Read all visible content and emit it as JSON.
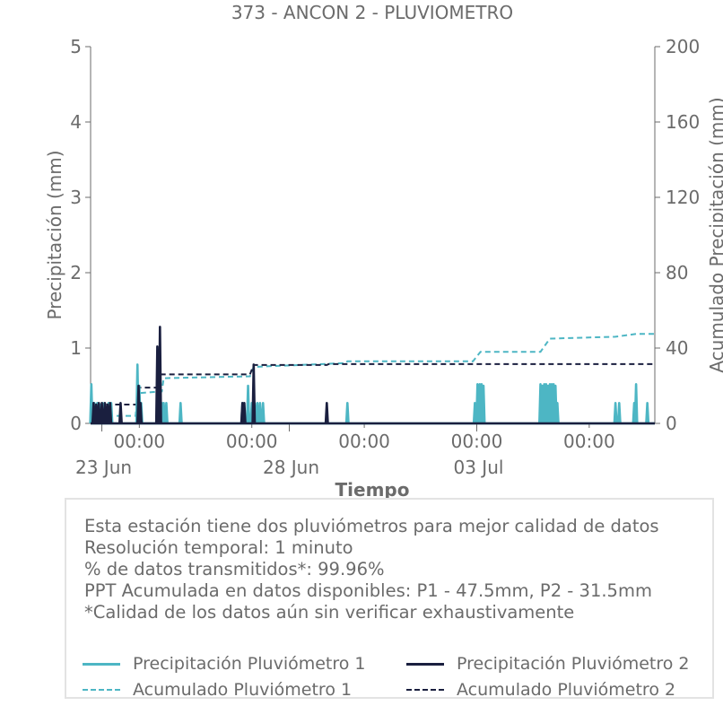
{
  "chart_data": {
    "type": "line",
    "title": "373 - ANCON 2 - PLUVIOMETRO",
    "xlabel": "Tiempo",
    "ylabel": "Precipitación (mm)",
    "y2label": "Acumulado Precipitación (mm)",
    "ylim": [
      0,
      5
    ],
    "y2lim": [
      0,
      200
    ],
    "yticks": [
      0,
      1,
      2,
      3,
      4,
      5
    ],
    "y2ticks": [
      0,
      40,
      80,
      120,
      160,
      200
    ],
    "xlim": [
      -0.3,
      14.75
    ],
    "xticks": [
      {
        "pos": 1,
        "label": "00:00"
      },
      {
        "pos": 4,
        "label": "00:00"
      },
      {
        "pos": 7,
        "label": "00:00"
      },
      {
        "pos": 10,
        "label": "00:00"
      },
      {
        "pos": 13,
        "label": "00:00"
      }
    ],
    "xticks_major": [
      {
        "pos": 0,
        "label": "23 Jun"
      },
      {
        "pos": 5,
        "label": "28 Jun"
      },
      {
        "pos": 10,
        "label": "03 Jul"
      }
    ],
    "colors": {
      "p1": "#4db6c4",
      "p2": "#1a1f3f"
    },
    "series": [
      {
        "name": "Precipitación Pluviómetro 1",
        "style": "solid",
        "axis": "left",
        "color": "#4db6c4",
        "x": [
          -0.28,
          -0.2,
          -0.12,
          -0.05,
          0.02,
          0.1,
          0.18,
          0.25,
          0.95,
          1.0,
          1.05,
          1.5,
          1.6,
          1.65,
          1.72,
          2.1,
          3.75,
          3.9,
          4.0,
          4.08,
          4.15,
          4.22,
          4.3,
          6.55,
          9.95,
          10.02,
          10.08,
          10.13,
          10.18,
          11.7,
          11.75,
          11.8,
          11.85,
          11.9,
          11.95,
          12.0,
          12.05,
          12.1,
          12.15,
          13.7,
          13.8,
          14.2,
          14.25,
          14.55
        ],
        "y": [
          0.52,
          0.27,
          0.27,
          0.25,
          0.27,
          0.2,
          0.27,
          0.27,
          0.78,
          0.5,
          0.27,
          0.3,
          0.27,
          0.27,
          0.27,
          0.27,
          0.27,
          0.5,
          0.27,
          0.27,
          0.27,
          0.27,
          0.27,
          0.27,
          0.27,
          0.52,
          0.52,
          0.52,
          0.5,
          0.52,
          0.5,
          0.52,
          0.52,
          0.5,
          0.52,
          0.52,
          0.52,
          0.5,
          0.27,
          0.27,
          0.27,
          0.27,
          0.52,
          0.27
        ]
      },
      {
        "name": "Precipitación Pluviómetro 2",
        "style": "solid",
        "axis": "left",
        "color": "#1a1f3f",
        "x": [
          -0.22,
          -0.15,
          -0.08,
          0.0,
          0.08,
          0.15,
          0.22,
          0.5,
          0.98,
          1.03,
          1.48,
          1.55,
          3.75,
          3.8,
          4.05,
          6.0
        ],
        "y": [
          0.27,
          0.25,
          0.27,
          0.27,
          0.27,
          0.25,
          0.27,
          0.27,
          0.5,
          0.27,
          1.02,
          1.28,
          0.27,
          0.27,
          0.78,
          0.27
        ]
      },
      {
        "name": "Acumulado Pluviómetro 1",
        "style": "dashed",
        "axis": "right",
        "color": "#4db6c4",
        "x": [
          -0.3,
          -0.1,
          0.9,
          0.95,
          1.6,
          1.65,
          3.95,
          4.05,
          6.5,
          6.55,
          9.9,
          10.1,
          11.7,
          11.95,
          13.7,
          14.25,
          14.75
        ],
        "y": [
          2,
          4,
          4,
          16,
          17,
          24,
          25,
          30,
          32,
          33,
          33,
          38,
          38,
          45,
          46,
          47.5,
          47.5
        ]
      },
      {
        "name": "Acumulado Pluviómetro 2",
        "style": "dashed",
        "axis": "right",
        "color": "#1a1f3f",
        "x": [
          -0.3,
          -0.15,
          0.95,
          1.0,
          1.5,
          1.55,
          3.95,
          4.05,
          6.0,
          6.05,
          14.75
        ],
        "y": [
          7,
          10,
          10,
          19,
          19,
          26,
          26,
          31,
          31,
          31.5,
          31.5
        ]
      }
    ]
  },
  "info": {
    "lines": [
      "Esta estación tiene dos pluviómetros para mejor calidad de datos",
      "Resolución temporal: 1 minuto",
      "% de datos transmitidos*: 99.96%",
      "PPT Acumulada en datos disponibles: P1 - 47.5mm, P2 - 31.5mm",
      "*Calidad de los datos aún sin verificar exhaustivamente"
    ]
  },
  "legend": [
    {
      "label": "Precipitación Pluviómetro 1",
      "color": "#4db6c4",
      "style": "solid"
    },
    {
      "label": "Precipitación Pluviómetro 2",
      "color": "#1a1f3f",
      "style": "solid"
    },
    {
      "label": "Acumulado Pluviómetro 1",
      "color": "#4db6c4",
      "style": "dashed"
    },
    {
      "label": "Acumulado Pluviómetro 2",
      "color": "#1a1f3f",
      "style": "dashed"
    }
  ]
}
